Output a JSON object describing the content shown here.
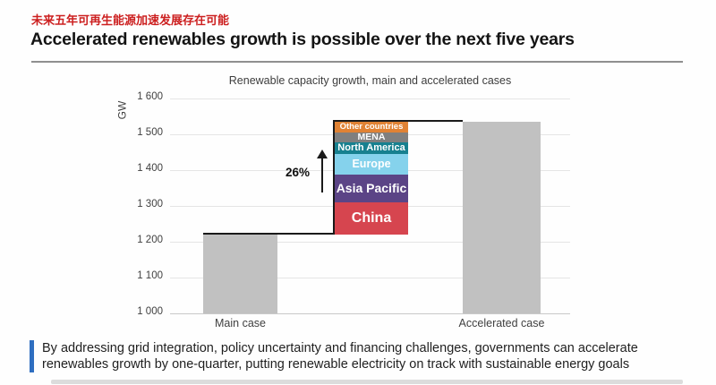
{
  "header": {
    "zh_title": "未来五年可再生能源加速发展存在可能",
    "en_title": "Accelerated renewables growth is possible over the next five years"
  },
  "chart_data": {
    "type": "bar",
    "title": "Renewable capacity growth, main and accelerated cases",
    "ylabel": "GW",
    "ylim": [
      1000,
      1600
    ],
    "ytick_values": [
      1000,
      1100,
      1200,
      1300,
      1400,
      1500,
      1600
    ],
    "ytick_labels": [
      "1 000",
      "1 100",
      "1 200",
      "1 300",
      "1 400",
      "1 500",
      "1 600"
    ],
    "grid": true,
    "legend_position": "none",
    "categories": [
      "Main case",
      "Accelerated case"
    ],
    "values": [
      1220,
      1535
    ],
    "bar_color": "#c1c1c1",
    "growth_label": "26%",
    "stacked_increment": {
      "baseline": 1220,
      "total": 315,
      "segments": [
        {
          "name": "China",
          "value": 90,
          "color": "#d6454f"
        },
        {
          "name": "Asia Pacific",
          "value": 77,
          "color": "#5b4486"
        },
        {
          "name": "Europe",
          "value": 58,
          "color": "#85d2ec"
        },
        {
          "name": "North America",
          "value": 33,
          "color": "#17808f"
        },
        {
          "name": "MENA",
          "value": 28,
          "color": "#7f7f7f"
        },
        {
          "name": "Other countries",
          "value": 29,
          "color": "#e08234"
        }
      ]
    }
  },
  "footer": {
    "line1": "By addressing grid integration, policy uncertainty and financing challenges, governments can accelerate",
    "line2": "renewables growth by one-quarter, putting renewable electricity on track with sustainable energy goals",
    "accent_color": "#2e6ec0"
  },
  "colors": {
    "zh_title": "#cc1f1f",
    "step_line": "#1a1a1a"
  }
}
